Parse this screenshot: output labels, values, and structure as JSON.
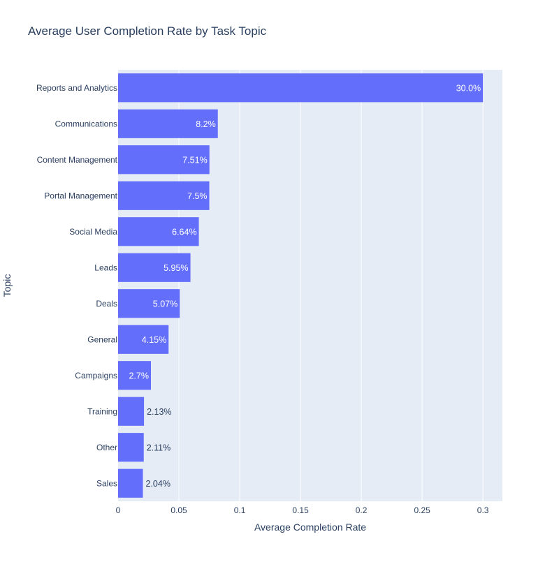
{
  "chart_data": {
    "type": "bar",
    "orientation": "horizontal",
    "title": "Average User Completion Rate by Task Topic",
    "xlabel": "Average Completion Rate",
    "ylabel": "Topic",
    "categories": [
      "Reports and Analytics",
      "Communications",
      "Content Management",
      "Portal Management",
      "Social Media",
      "Leads",
      "Deals",
      "General",
      "Campaigns",
      "Training",
      "Other",
      "Sales"
    ],
    "values": [
      0.3,
      0.082,
      0.0751,
      0.075,
      0.0664,
      0.0595,
      0.0507,
      0.0415,
      0.027,
      0.0213,
      0.0211,
      0.0204
    ],
    "data_labels": [
      "30.0%",
      "8.2%",
      "7.51%",
      "7.5%",
      "6.64%",
      "5.95%",
      "5.07%",
      "4.15%",
      "2.7%",
      "2.13%",
      "2.11%",
      "2.04%"
    ],
    "xlim": [
      0,
      0.316
    ],
    "xticks": [
      0,
      0.05,
      0.1,
      0.15,
      0.2,
      0.25,
      0.3
    ],
    "xtick_labels": [
      "0",
      "0.05",
      "0.1",
      "0.15",
      "0.2",
      "0.25",
      "0.3"
    ],
    "grid": true,
    "colors": {
      "bar": "#636efa",
      "plot_background": "#e5ecf6",
      "grid": "#ffffff",
      "text": "#2a3f5f"
    }
  }
}
